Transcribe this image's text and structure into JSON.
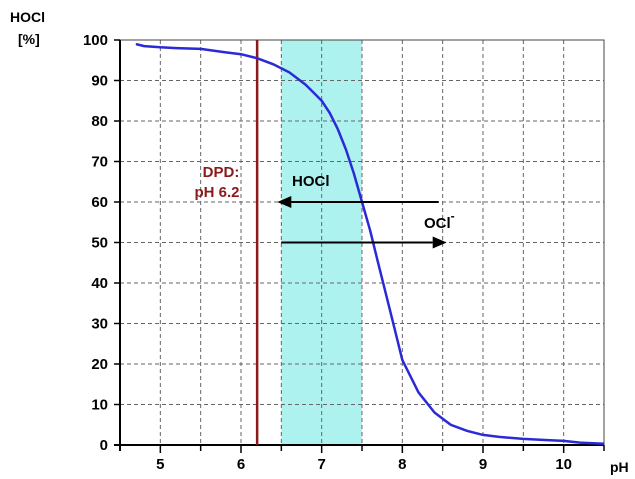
{
  "chart_data": {
    "type": "line",
    "ylabel_line1": "HOCl",
    "ylabel_line2": "[%]",
    "xlabel": "pH",
    "xlim": [
      4.5,
      10.5
    ],
    "ylim": [
      0,
      100
    ],
    "x_ticks": [
      5,
      6,
      7,
      8,
      9,
      10
    ],
    "y_ticks": [
      0,
      10,
      20,
      30,
      40,
      50,
      60,
      70,
      80,
      90,
      100
    ],
    "grid": true,
    "series": [
      {
        "color": "#2a2ad6",
        "x": [
          4.7,
          4.8,
          5.0,
          5.2,
          5.5,
          5.8,
          6.0,
          6.2,
          6.4,
          6.6,
          6.8,
          6.9,
          7.0,
          7.1,
          7.2,
          7.3,
          7.4,
          7.5,
          7.6,
          7.7,
          7.8,
          7.9,
          8.0,
          8.2,
          8.4,
          8.6,
          8.8,
          9.0,
          9.2,
          9.5,
          9.8,
          10.0,
          10.2,
          10.5
        ],
        "y": [
          99,
          98.5,
          98.2,
          98,
          97.8,
          97,
          96.5,
          95.5,
          94,
          92,
          89,
          87,
          85,
          82,
          78,
          73,
          67,
          60,
          53,
          45,
          37,
          29,
          21,
          13,
          8,
          5,
          3.5,
          2.5,
          2,
          1.5,
          1.2,
          1,
          0.6,
          0.3
        ]
      }
    ],
    "annotations": {
      "shaded_band": {
        "from": 6.5,
        "to": 7.5,
        "color": "#aef2f0"
      },
      "vertical_line": {
        "x": 6.2,
        "color": "#8b1a1a"
      },
      "dpd_line1": "DPD:",
      "dpd_line2": "pH 6.2",
      "hocl_label": "HOCl",
      "ocl_label": "OCl",
      "ocl_superscript": "-",
      "arrow_hocl": {
        "from": [
          8.45,
          60
        ],
        "to": [
          6.45,
          60
        ]
      },
      "arrow_ocl": {
        "from": [
          6.5,
          50
        ],
        "to": [
          8.55,
          50
        ]
      },
      "arrow_color": "#000000"
    }
  }
}
